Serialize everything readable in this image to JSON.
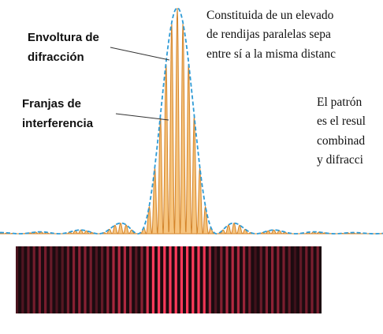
{
  "labels": {
    "envelope": [
      "Envoltura de",
      "difracción"
    ],
    "fringes": [
      "Franjas de",
      "interferencia"
    ]
  },
  "text_blocks": [
    [
      "Constituida de un elevado",
      "de rendijas paralelas sepa",
      "entre sí a la misma distanc"
    ],
    [
      "El patrón",
      "es el resul",
      "combinad",
      "y difracci"
    ]
  ]
}
